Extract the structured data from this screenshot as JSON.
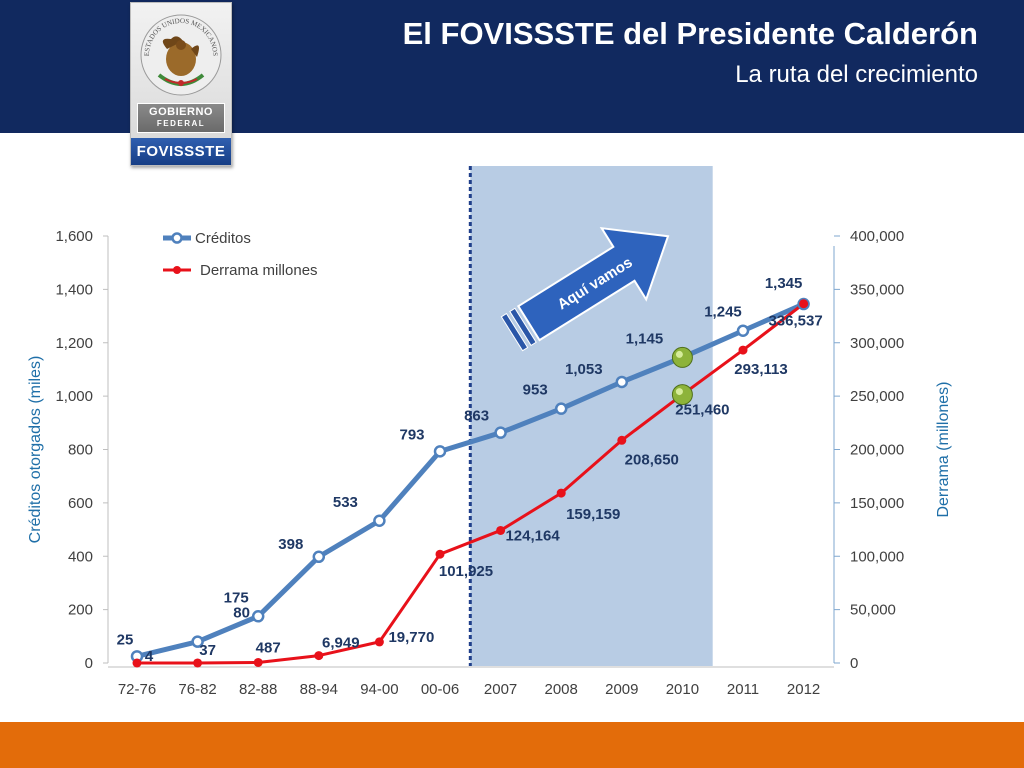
{
  "header": {
    "title": "El FOVISSSTE del Presidente Calderón",
    "subtitle": "La ruta del crecimiento"
  },
  "logo": {
    "gov_line1": "GOBIERNO",
    "gov_line2": "FEDERAL",
    "org": "FOVISSSTE",
    "seal_text": "ESTADOS UNIDOS MEXICANOS"
  },
  "colors": {
    "header_bg": "#11295f",
    "creditos_line": "#4f81bd",
    "derrama_line": "#e8111a",
    "highlight_band": "#b8cce4",
    "footer_bar": "#e36c0a",
    "marker_green": "#8db33a"
  },
  "annotation": {
    "arrow_label": "Aquí vamos",
    "highlight_start": "2007",
    "highlight_end": "2010",
    "current_points": [
      "2010"
    ]
  },
  "chart_data": {
    "type": "line",
    "categories": [
      "72-76",
      "76-82",
      "82-88",
      "88-94",
      "94-00",
      "00-06",
      "2007",
      "2008",
      "2009",
      "2010",
      "2011",
      "2012"
    ],
    "series": [
      {
        "name": "Créditos",
        "axis": "left",
        "values": [
          25,
          80,
          175,
          398,
          533,
          793,
          863,
          953,
          1053,
          1145,
          1245,
          1345
        ],
        "labels": [
          "25",
          "80",
          "175",
          "398",
          "533",
          "793",
          "863",
          "953",
          "1,053",
          "1,145",
          "1,245",
          "1,345"
        ]
      },
      {
        "name": "Derrama millones",
        "axis": "right",
        "values": [
          4,
          37,
          487,
          6949,
          19770,
          101925,
          124164,
          159159,
          208650,
          251460,
          293113,
          336537
        ],
        "labels": [
          "4",
          "37",
          "487",
          "6,949",
          "19,770",
          "101,925",
          "124,164",
          "159,159",
          "208,650",
          "251,460",
          "293,113",
          "336,537"
        ]
      }
    ],
    "ylabel": "Créditos otorgados (miles)",
    "y2label": "Derrama (millones)",
    "ylim": [
      0,
      1600
    ],
    "yticks": [
      0,
      200,
      400,
      600,
      800,
      1000,
      1200,
      1400,
      1600
    ],
    "ytick_labels": [
      "0",
      "200",
      "400",
      "600",
      "800",
      "1,000",
      "1,200",
      "1,400",
      "1,600"
    ],
    "y2lim": [
      0,
      400000
    ],
    "y2ticks": [
      0,
      50000,
      100000,
      150000,
      200000,
      250000,
      300000,
      350000,
      400000
    ],
    "y2tick_labels": [
      "0",
      "50,000",
      "100,000",
      "150,000",
      "200,000",
      "250,000",
      "300,000",
      "350,000",
      "400,000"
    ],
    "legend_position": "top-left",
    "grid": false
  }
}
